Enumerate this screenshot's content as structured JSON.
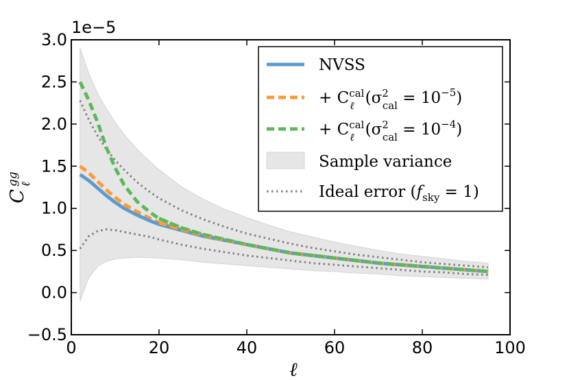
{
  "chart_data": {
    "type": "line",
    "title": "",
    "xlabel": "ℓ",
    "ylabel": "C_ℓ^{gg}",
    "xlim": [
      0,
      100
    ],
    "ylim": [
      -0.5,
      3.0
    ],
    "y_multiplier": "1e−5",
    "x_ticks": [
      0,
      20,
      40,
      60,
      80,
      100
    ],
    "x_tick_labels": [
      "0",
      "20",
      "40",
      "60",
      "80",
      "100"
    ],
    "y_ticks": [
      -0.5,
      0.0,
      0.5,
      1.0,
      1.5,
      2.0,
      2.5,
      3.0
    ],
    "y_tick_labels": [
      "−0.5",
      "0.0",
      "0.5",
      "1.0",
      "1.5",
      "2.0",
      "2.5",
      "3.0"
    ],
    "grid": false,
    "legend_position": "top-right",
    "x": [
      2,
      4,
      6,
      8,
      10,
      12,
      15,
      18,
      20,
      25,
      30,
      35,
      40,
      45,
      50,
      55,
      60,
      65,
      70,
      75,
      80,
      85,
      90,
      95
    ],
    "series": [
      {
        "name": "NVSS",
        "legend_label": "NVSS",
        "style": "solid",
        "color": "#5b9bd0",
        "values": [
          1.4,
          1.33,
          1.24,
          1.15,
          1.07,
          1.0,
          0.92,
          0.85,
          0.81,
          0.74,
          0.67,
          0.62,
          0.57,
          0.52,
          0.47,
          0.44,
          0.41,
          0.38,
          0.35,
          0.33,
          0.31,
          0.29,
          0.27,
          0.25
        ]
      },
      {
        "name": "cal_1e-5",
        "legend_prefix": "+ C",
        "legend_suffix": "(σ",
        "legend_eq": " = 10",
        "legend_exp": "−5",
        "legend_close": ")",
        "legend_sup_cal": "cal",
        "legend_sub_l": "ℓ",
        "legend_sup_2": "2",
        "legend_sub_cal": "cal",
        "style": "dashed",
        "color": "#ff9a33",
        "values": [
          1.5,
          1.42,
          1.32,
          1.22,
          1.13,
          1.05,
          0.96,
          0.88,
          0.83,
          0.75,
          0.68,
          0.62,
          0.57,
          0.52,
          0.47,
          0.44,
          0.41,
          0.38,
          0.35,
          0.33,
          0.31,
          0.29,
          0.27,
          0.25
        ]
      },
      {
        "name": "cal_1e-4",
        "legend_prefix": "+ C",
        "legend_suffix": "(σ",
        "legend_eq": " = 10",
        "legend_exp": "−4",
        "legend_close": ")",
        "legend_sup_cal": "cal",
        "legend_sub_l": "ℓ",
        "legend_sup_2": "2",
        "legend_sub_cal": "cal",
        "style": "dashed",
        "color": "#5cb85c",
        "values": [
          2.5,
          2.28,
          2.02,
          1.72,
          1.48,
          1.28,
          1.08,
          0.95,
          0.88,
          0.77,
          0.69,
          0.63,
          0.57,
          0.52,
          0.47,
          0.44,
          0.41,
          0.38,
          0.35,
          0.33,
          0.31,
          0.29,
          0.27,
          0.25
        ]
      }
    ],
    "sample_variance_band": {
      "name": "Sample variance",
      "color": "#e6e6e6",
      "upper": [
        2.9,
        2.6,
        2.36,
        2.18,
        2.02,
        1.88,
        1.7,
        1.55,
        1.46,
        1.26,
        1.11,
        0.99,
        0.89,
        0.8,
        0.72,
        0.66,
        0.6,
        0.55,
        0.5,
        0.46,
        0.43,
        0.4,
        0.37,
        0.35
      ],
      "lower": [
        -0.1,
        0.18,
        0.31,
        0.37,
        0.4,
        0.41,
        0.42,
        0.415,
        0.41,
        0.39,
        0.36,
        0.34,
        0.32,
        0.3,
        0.28,
        0.26,
        0.25,
        0.23,
        0.22,
        0.2,
        0.19,
        0.18,
        0.17,
        0.16
      ]
    },
    "ideal_error": {
      "name": "Ideal error",
      "legend_prefix": "Ideal error (",
      "legend_f": "f",
      "legend_sub": "sky",
      "legend_rest": " = 1)",
      "color": "#808080",
      "upper": [
        2.28,
        2.05,
        1.86,
        1.7,
        1.57,
        1.46,
        1.31,
        1.19,
        1.12,
        0.98,
        0.87,
        0.78,
        0.7,
        0.64,
        0.58,
        0.53,
        0.49,
        0.45,
        0.42,
        0.39,
        0.36,
        0.34,
        0.32,
        0.3
      ],
      "lower": [
        0.52,
        0.67,
        0.73,
        0.75,
        0.74,
        0.72,
        0.69,
        0.66,
        0.63,
        0.57,
        0.52,
        0.48,
        0.44,
        0.41,
        0.38,
        0.35,
        0.33,
        0.31,
        0.29,
        0.27,
        0.25,
        0.24,
        0.22,
        0.21
      ]
    }
  }
}
